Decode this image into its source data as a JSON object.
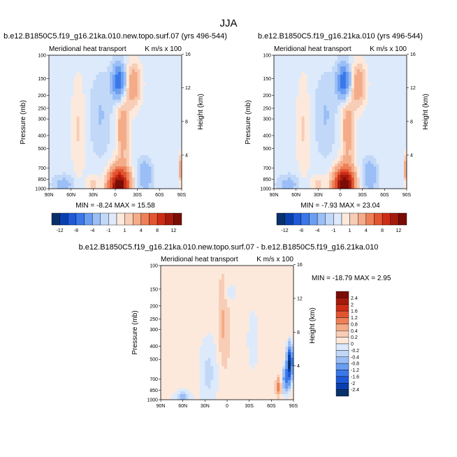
{
  "figure": {
    "title": "JJA"
  },
  "colors": {
    "neg": [
      "#08306b",
      "#0a3fb0",
      "#1f5ad6",
      "#3a78ea",
      "#6a9ef2",
      "#9bbef6",
      "#c2d8f8",
      "#ddeafb"
    ],
    "pos": [
      "#fde9dc",
      "#f8cdb5",
      "#f4ac88",
      "#ee8059",
      "#e35531",
      "#cc2d16",
      "#a51a0d",
      "#7a0c06"
    ]
  },
  "chart_data": [
    {
      "type": "heatmap",
      "name": "panel-1",
      "title": "b.e12.B1850C5.f19_g16.21ka.010.new.topo.surf.07 (yrs 496-544)",
      "left_label": "Meridional heat transport",
      "right_label": "K m/s x 100",
      "xlabel": "",
      "ylabel": "Pressure (mb)",
      "ylabel_right": "Height (km)",
      "x_ticks": [
        "90N",
        "60N",
        "30N",
        "0",
        "30S",
        "60S",
        "90S"
      ],
      "y_ticks": [
        "100",
        "150",
        "200",
        "250",
        "300",
        "400",
        "500",
        "700",
        "850",
        "1000"
      ],
      "height_ticks": [
        "16",
        "12",
        "8",
        "4"
      ],
      "ylim": [
        1000,
        100
      ],
      "stats": "MIN = -8.24  MAX = 15.58",
      "colorbar_labels": [
        "-12",
        "-8",
        "-4",
        "-1",
        "1",
        "4",
        "8",
        "12"
      ]
    },
    {
      "type": "heatmap",
      "name": "panel-2",
      "title": "b.e12.B1850C5.f19_g16.21ka.010 (yrs 496-544)",
      "left_label": "Meridional heat transport",
      "right_label": "K m/s x 100",
      "xlabel": "",
      "ylabel": "Pressure (mb)",
      "ylabel_right": "Height (km)",
      "x_ticks": [
        "90N",
        "60N",
        "30N",
        "0",
        "30S",
        "60S",
        "90S"
      ],
      "y_ticks": [
        "100",
        "150",
        "200",
        "250",
        "300",
        "400",
        "500",
        "700",
        "850",
        "1000"
      ],
      "height_ticks": [
        "16",
        "12",
        "8",
        "4"
      ],
      "ylim": [
        1000,
        100
      ],
      "stats": "MIN = -7.93  MAX = 23.04",
      "colorbar_labels": [
        "-12",
        "-8",
        "-4",
        "-1",
        "1",
        "4",
        "8",
        "12"
      ]
    },
    {
      "type": "heatmap",
      "name": "panel-diff",
      "title": "b.e12.B1850C5.f19_g16.21ka.010.new.topo.surf.07 - b.e12.B1850C5.f19_g16.21ka.010",
      "left_label": "Meridional heat transport",
      "right_label": "K m/s x 100",
      "xlabel": "",
      "ylabel": "Pressure (mb)",
      "ylabel_right": "Height (km)",
      "x_ticks": [
        "90N",
        "60N",
        "30N",
        "0",
        "30S",
        "60S",
        "90S"
      ],
      "y_ticks": [
        "100",
        "150",
        "200",
        "250",
        "300",
        "400",
        "500",
        "700",
        "850",
        "1000"
      ],
      "height_ticks": [
        "16",
        "12",
        "8",
        "4"
      ],
      "ylim": [
        1000,
        100
      ],
      "stats": "MIN = -18.79  MAX =   2.95",
      "colorbar_labels": [
        "2.4",
        "2",
        "1.6",
        "1.2",
        "0.8",
        "0.4",
        "0.2",
        "0",
        "-0.2",
        "-0.4",
        "-0.8",
        "-1.2",
        "-1.6",
        "-2",
        "-2.4"
      ]
    }
  ]
}
